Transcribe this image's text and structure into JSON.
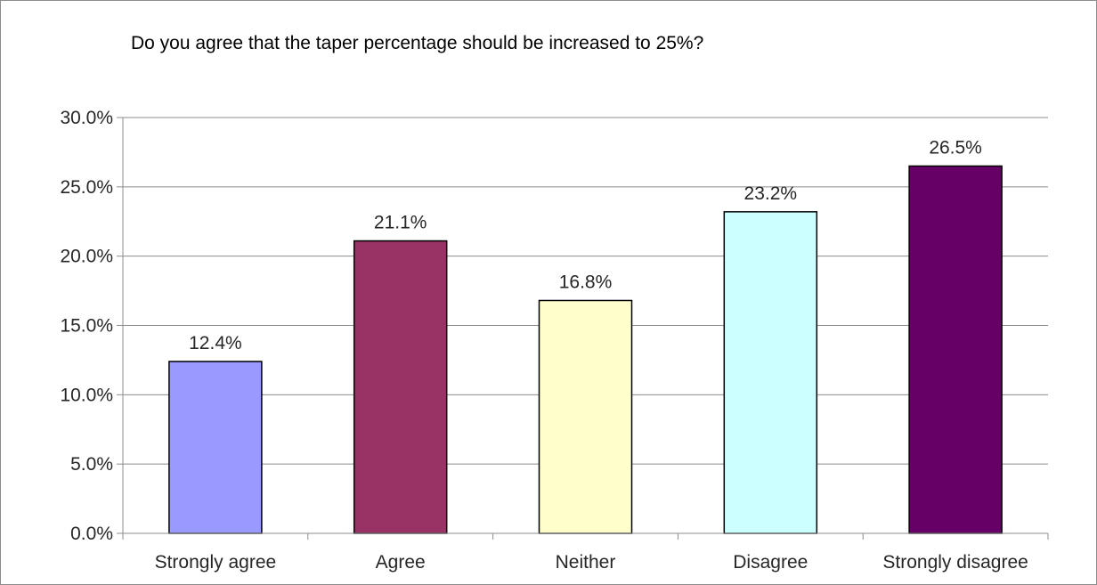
{
  "chart_data": {
    "type": "bar",
    "title": "Do you agree that the taper percentage should be increased to 25%?",
    "categories": [
      "Strongly agree",
      "Agree",
      "Neither",
      "Disagree",
      "Strongly disagree"
    ],
    "values": [
      12.4,
      21.1,
      16.8,
      23.2,
      26.5
    ],
    "value_labels": [
      "12.4%",
      "21.1%",
      "16.8%",
      "23.2%",
      "26.5%"
    ],
    "bar_colors": [
      "#9999ff",
      "#993366",
      "#ffffcc",
      "#ccffff",
      "#660066"
    ],
    "ylim": [
      0,
      30
    ],
    "yticks": [
      0,
      5,
      10,
      15,
      20,
      25,
      30
    ],
    "ytick_labels": [
      "0.0%",
      "5.0%",
      "10.0%",
      "15.0%",
      "20.0%",
      "25.0%",
      "30.0%"
    ],
    "xlabel": "",
    "ylabel": "",
    "grid": true,
    "legend": "none"
  }
}
